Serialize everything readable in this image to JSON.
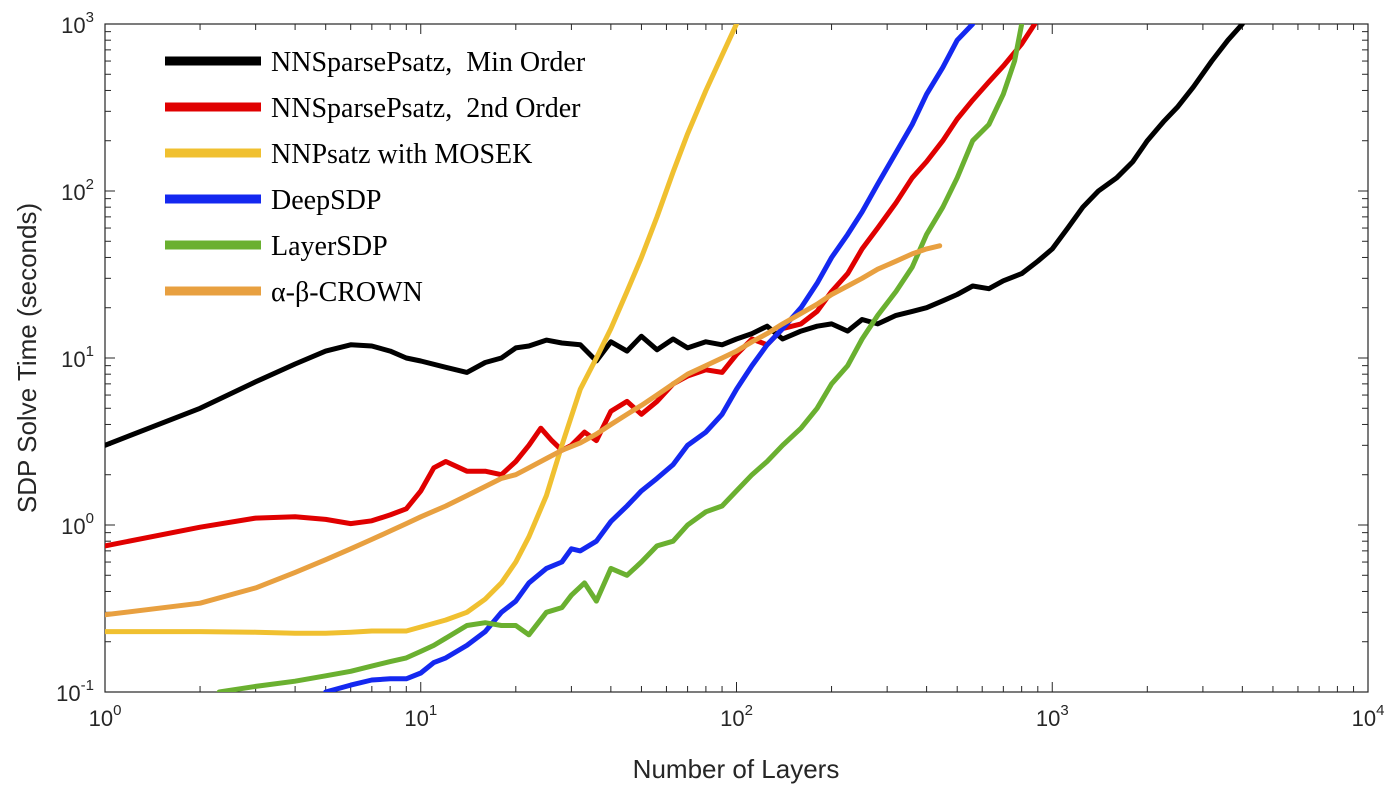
{
  "chart_data": {
    "type": "line",
    "xlabel": "Number of Layers",
    "ylabel": "SDP Solve Time (seconds)",
    "xscale": "log",
    "yscale": "log",
    "xlim": [
      1,
      10000
    ],
    "ylim": [
      0.1,
      1000
    ],
    "grid": false,
    "legend_position": "top-left",
    "x_ticks": [
      {
        "base": "10",
        "exp": "0",
        "value": 1
      },
      {
        "base": "10",
        "exp": "1",
        "value": 10
      },
      {
        "base": "10",
        "exp": "2",
        "value": 100
      },
      {
        "base": "10",
        "exp": "3",
        "value": 1000
      },
      {
        "base": "10",
        "exp": "4",
        "value": 10000
      }
    ],
    "y_ticks": [
      {
        "base": "10",
        "exp": "-1",
        "value": 0.1
      },
      {
        "base": "10",
        "exp": "0",
        "value": 1
      },
      {
        "base": "10",
        "exp": "1",
        "value": 10
      },
      {
        "base": "10",
        "exp": "2",
        "value": 100
      },
      {
        "base": "10",
        "exp": "3",
        "value": 1000
      }
    ],
    "series": [
      {
        "name": "NNSparsePsatz,  Min Order",
        "color": "#000000",
        "x": [
          1,
          2,
          3,
          4,
          5,
          6,
          7,
          8,
          9,
          10,
          12,
          14,
          16,
          18,
          20,
          22,
          25,
          28,
          32,
          36,
          40,
          45,
          50,
          56,
          63,
          70,
          80,
          90,
          100,
          112,
          125,
          140,
          160,
          180,
          200,
          225,
          250,
          280,
          320,
          360,
          400,
          450,
          500,
          560,
          630,
          700,
          800,
          900,
          1000,
          1120,
          1250,
          1400,
          1600,
          1800,
          2000,
          2250,
          2500,
          2800,
          3200,
          3600,
          4000
        ],
        "y": [
          3.0,
          5.0,
          7.2,
          9.2,
          11.0,
          12.0,
          11.8,
          11.0,
          10.0,
          9.6,
          8.8,
          8.2,
          9.4,
          10.0,
          11.5,
          11.8,
          12.8,
          12.3,
          12.0,
          9.6,
          12.5,
          11.0,
          13.5,
          11.2,
          13.0,
          11.5,
          12.5,
          12.0,
          13.0,
          14.0,
          15.5,
          13.0,
          14.5,
          15.5,
          16.0,
          14.5,
          17.0,
          16.0,
          18.0,
          19.0,
          20.0,
          22.0,
          24.0,
          27.0,
          26.0,
          29.0,
          32.0,
          38.0,
          45.0,
          60.0,
          80.0,
          100.0,
          120.0,
          150.0,
          200.0,
          260.0,
          320.0,
          420.0,
          600.0,
          800.0,
          1000.0
        ]
      },
      {
        "name": "NNSparsePsatz,  2nd Order",
        "color": "#e00000",
        "x": [
          1,
          2,
          3,
          4,
          5,
          6,
          7,
          8,
          9,
          10,
          11,
          12,
          14,
          16,
          18,
          20,
          22,
          24,
          26,
          28,
          30,
          33,
          36,
          40,
          45,
          50,
          56,
          63,
          70,
          80,
          90,
          100,
          112,
          125,
          140,
          160,
          180,
          200,
          225,
          250,
          280,
          320,
          360,
          400,
          450,
          500,
          560,
          630,
          700,
          800,
          880
        ],
        "y": [
          0.75,
          0.97,
          1.1,
          1.12,
          1.08,
          1.02,
          1.06,
          1.15,
          1.25,
          1.6,
          2.2,
          2.4,
          2.1,
          2.1,
          2.0,
          2.4,
          3.0,
          3.8,
          3.2,
          2.8,
          3.0,
          3.6,
          3.2,
          4.8,
          5.5,
          4.6,
          5.5,
          7.0,
          7.8,
          8.5,
          8.2,
          10.5,
          13.0,
          12.0,
          15.0,
          16.0,
          19.0,
          25.0,
          32.0,
          45.0,
          60.0,
          85.0,
          120.0,
          150.0,
          200.0,
          270.0,
          350.0,
          450.0,
          560.0,
          760.0,
          1000.0
        ]
      },
      {
        "name": "NNPsatz with MOSEK",
        "color": "#f0c030",
        "x": [
          1,
          2,
          3,
          4,
          5,
          6,
          7,
          8,
          9,
          10,
          12,
          14,
          16,
          18,
          20,
          22,
          25,
          28,
          32,
          36,
          40,
          45,
          50,
          56,
          63,
          70,
          80,
          90,
          100
        ],
        "y": [
          0.23,
          0.23,
          0.228,
          0.225,
          0.225,
          0.228,
          0.232,
          0.232,
          0.232,
          0.245,
          0.27,
          0.3,
          0.36,
          0.45,
          0.6,
          0.85,
          1.5,
          3.0,
          6.5,
          10.0,
          15.0,
          25.0,
          40.0,
          70.0,
          130.0,
          220.0,
          400.0,
          650.0,
          1000.0
        ]
      },
      {
        "name": "DeepSDP",
        "color": "#1428f0",
        "x": [
          5,
          6,
          7,
          8,
          9,
          10,
          11,
          12,
          14,
          16,
          18,
          20,
          22,
          25,
          28,
          30,
          32,
          36,
          40,
          45,
          50,
          56,
          63,
          70,
          80,
          90,
          100,
          112,
          125,
          140,
          160,
          180,
          200,
          225,
          250,
          280,
          320,
          360,
          400,
          450,
          500,
          560
        ],
        "y": [
          0.1,
          0.11,
          0.118,
          0.12,
          0.12,
          0.13,
          0.15,
          0.16,
          0.19,
          0.23,
          0.3,
          0.35,
          0.45,
          0.55,
          0.6,
          0.72,
          0.7,
          0.8,
          1.05,
          1.3,
          1.6,
          1.9,
          2.3,
          3.0,
          3.6,
          4.6,
          6.5,
          9.0,
          12.0,
          15.0,
          20.0,
          28.0,
          40.0,
          55.0,
          75.0,
          110.0,
          170.0,
          250.0,
          380.0,
          550.0,
          800.0,
          1000.0
        ]
      },
      {
        "name": "LayerSDP",
        "color": "#6ab030",
        "x": [
          2.3,
          3,
          4,
          5,
          6,
          7,
          8,
          9,
          10,
          11,
          12,
          14,
          16,
          18,
          20,
          22,
          25,
          28,
          30,
          33,
          36,
          40,
          45,
          50,
          56,
          63,
          70,
          80,
          90,
          100,
          112,
          125,
          140,
          160,
          180,
          200,
          225,
          250,
          280,
          320,
          360,
          400,
          450,
          500,
          560,
          630,
          700,
          760,
          800
        ],
        "y": [
          0.1,
          0.108,
          0.116,
          0.125,
          0.133,
          0.143,
          0.152,
          0.16,
          0.175,
          0.19,
          0.21,
          0.25,
          0.26,
          0.25,
          0.25,
          0.22,
          0.3,
          0.32,
          0.38,
          0.45,
          0.35,
          0.55,
          0.5,
          0.6,
          0.75,
          0.8,
          1.0,
          1.2,
          1.3,
          1.6,
          2.0,
          2.4,
          3.0,
          3.8,
          5.0,
          7.0,
          9.0,
          13.0,
          18.0,
          25.0,
          35.0,
          55.0,
          80.0,
          120.0,
          200.0,
          250.0,
          380.0,
          600.0,
          1000.0
        ]
      },
      {
        "name": "α-β-CROWN",
        "color": "#e8a040",
        "x": [
          1,
          2,
          3,
          4,
          5,
          6,
          7,
          8,
          9,
          10,
          12,
          14,
          16,
          18,
          20,
          22,
          25,
          28,
          32,
          36,
          40,
          45,
          50,
          56,
          63,
          70,
          80,
          90,
          100,
          112,
          125,
          140,
          160,
          180,
          200,
          225,
          250,
          280,
          320,
          360,
          400,
          440
        ],
        "y": [
          0.29,
          0.34,
          0.42,
          0.52,
          0.62,
          0.72,
          0.82,
          0.92,
          1.02,
          1.12,
          1.3,
          1.5,
          1.7,
          1.9,
          2.0,
          2.2,
          2.5,
          2.8,
          3.1,
          3.5,
          4.0,
          4.6,
          5.2,
          6.0,
          7.0,
          8.0,
          9.0,
          10.0,
          11.0,
          12.5,
          14.0,
          16.0,
          18.5,
          21.0,
          24.0,
          27.0,
          30.0,
          34.0,
          38.0,
          42.0,
          45.0,
          47.0
        ]
      }
    ]
  }
}
